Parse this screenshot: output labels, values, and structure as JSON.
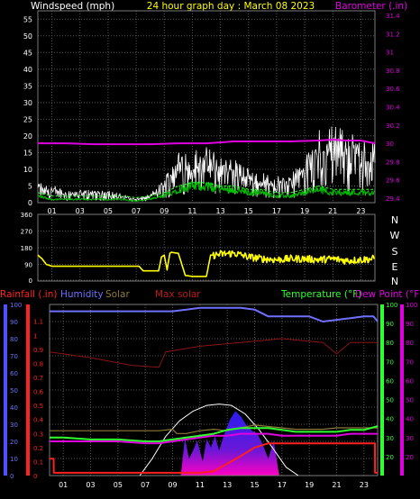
{
  "header": {
    "windspeed_label": "Windspeed (mph)",
    "title": "24 hour graph day : March 08 2023",
    "barometer_label": "Barometer (.in)"
  },
  "direction_letters": [
    "N",
    "W",
    "S",
    "E",
    "N"
  ],
  "bottom_header": {
    "rainfall": "Rainfall (.in)",
    "humidity": "Humidity",
    "solar": "Solar",
    "max_solar": "Max solar",
    "temperature": "Temperature (°F)",
    "dew_point": "Dew Point (°F)"
  },
  "colors": {
    "wind_gust": "#ffffff",
    "wind_avg": "#00c000",
    "barometer": "#e000e0",
    "direction": "#ffff00",
    "temperature": "#30ff30",
    "dew_point": "#e000e0",
    "humidity": "#7070ff",
    "rain": "#ff2020",
    "solar": "#8c7a3a",
    "max_solar": "#ffffff",
    "solar_fill": "#3a1bd8"
  },
  "chart_data": [
    {
      "type": "line",
      "title": "24 hour graph day : March 08 2023",
      "x": {
        "ticks": [
          "01",
          "03",
          "05",
          "07",
          "09",
          "11",
          "13",
          "15",
          "17",
          "19",
          "21",
          "23"
        ],
        "range": [
          "00:00",
          "24:00"
        ]
      },
      "yleft": {
        "label": "Windspeed (mph)",
        "range": [
          0,
          57.5
        ],
        "ticks": [
          0,
          5,
          10,
          15,
          20,
          25,
          30,
          35,
          40,
          45,
          50,
          55
        ]
      },
      "yright": {
        "label": "Barometer (.in)",
        "range": [
          29.35,
          31.45
        ],
        "ticks": [
          "29.4",
          "29.6",
          "29.8",
          "30",
          "30.2",
          "30.4",
          "30.6",
          "30.8",
          "31",
          "31.2",
          "31.4"
        ]
      },
      "series": [
        {
          "name": "Barometer",
          "axis": "right",
          "x": [
            0,
            2,
            4,
            6,
            8,
            10,
            12,
            14,
            16,
            18,
            20,
            21,
            22,
            23,
            24
          ],
          "values": [
            30.0,
            30.0,
            29.99,
            29.99,
            29.99,
            30.0,
            30.0,
            30.02,
            30.02,
            30.02,
            30.03,
            30.04,
            30.03,
            30.03,
            30.0
          ]
        },
        {
          "axis": "left",
          "x": [
            0,
            1,
            2,
            3,
            4,
            5,
            6,
            7,
            8,
            9,
            10,
            11,
            12,
            13,
            14,
            15,
            16,
            17,
            18,
            19,
            20,
            21,
            22,
            23,
            24
          ],
          "values": [
            2,
            1,
            1,
            1,
            1,
            1,
            1,
            0.5,
            1,
            2,
            4,
            5,
            5,
            4,
            4,
            3,
            3,
            2,
            2,
            3,
            4,
            3,
            3,
            3,
            3
          ]
        },
        {
          "axis": "left",
          "x": [
            0,
            1,
            2,
            3,
            4,
            5,
            6,
            7,
            8,
            9,
            10,
            11,
            12,
            13,
            14,
            15,
            16,
            17,
            18,
            19,
            20,
            21,
            22,
            23,
            24
          ],
          "values": [
            5,
            4,
            3,
            3,
            3,
            3,
            2,
            1,
            2,
            6,
            12,
            12,
            13,
            11,
            10,
            8,
            7,
            6,
            7,
            10,
            17,
            18,
            17,
            15,
            14
          ]
        }
      ]
    },
    {
      "type": "line",
      "x": {
        "ticks": [
          "01",
          "03",
          "05",
          "07",
          "09",
          "11",
          "13",
          "15",
          "17",
          "19",
          "21",
          "23"
        ],
        "range": [
          "00:00",
          "24:00"
        ]
      },
      "y": {
        "range": [
          0,
          360
        ],
        "ticks": [
          0,
          90,
          180,
          270,
          360
        ]
      },
      "series": [
        {
          "name": "Wind direction",
          "x": [
            0,
            0.3,
            0.6,
            1,
            2,
            4,
            5,
            6,
            6.8,
            7.2,
            7.5,
            7.8,
            8.2,
            8.6,
            8.8,
            9,
            9.2,
            9.4,
            9.5,
            10,
            10.5,
            11,
            12,
            12.3,
            12.6,
            13,
            14,
            15,
            16,
            17,
            18,
            19,
            20,
            21,
            22,
            23,
            24
          ],
          "values": [
            140,
            120,
            90,
            80,
            80,
            80,
            80,
            80,
            80,
            80,
            55,
            55,
            55,
            55,
            130,
            140,
            60,
            150,
            155,
            150,
            30,
            25,
            25,
            140,
            140,
            145,
            150,
            130,
            120,
            115,
            120,
            120,
            115,
            120,
            110,
            115,
            120
          ]
        }
      ]
    },
    {
      "type": "line",
      "x": {
        "ticks": [
          "01",
          "03",
          "05",
          "07",
          "09",
          "11",
          "13",
          "15",
          "17",
          "19",
          "21",
          "23"
        ],
        "range": [
          "00:00",
          "24:00"
        ]
      },
      "yleft_rain": {
        "label": "Rainfall (.in)",
        "range": [
          0,
          1.22
        ],
        "ticks": [
          "0",
          "0.1",
          "0.2",
          "0.3",
          "0.4",
          "0.5",
          "0.6",
          "0.7",
          "0.8",
          "0.9",
          "1",
          "1.1"
        ]
      },
      "yleft_humidity": {
        "label": "Humidity",
        "range": [
          0,
          100
        ],
        "ticks": [
          0,
          10,
          20,
          30,
          40,
          50,
          60,
          70,
          80,
          90,
          100
        ]
      },
      "yright_temp": {
        "label": "Temperature (°F)",
        "range": [
          10,
          100
        ],
        "ticks": [
          20,
          30,
          40,
          50,
          60,
          70,
          80,
          90,
          100
        ]
      },
      "yright_dew": {
        "label": "Dew Point (°F)",
        "range": [
          10,
          100
        ],
        "ticks": [
          20,
          30,
          40,
          50,
          60,
          70,
          80,
          90,
          100
        ]
      },
      "series": [
        {
          "name": "Humidity",
          "axis": "humidity",
          "x": [
            0,
            3,
            6,
            8,
            9,
            10,
            11,
            12,
            13,
            14,
            15,
            16,
            17,
            18,
            19,
            20,
            21,
            22,
            23,
            23.7,
            24
          ],
          "values": [
            96,
            96,
            96,
            96,
            96,
            97,
            98,
            98,
            98,
            98,
            97,
            93,
            93,
            93,
            93,
            90,
            91,
            92,
            93,
            93,
            90
          ]
        },
        {
          "name": "Temperature (°F)",
          "axis": "temp",
          "x": [
            0,
            1,
            3,
            5,
            7,
            8,
            9,
            10,
            11,
            12,
            13,
            14,
            15,
            16,
            17,
            18,
            19,
            20,
            21,
            22,
            23,
            24
          ],
          "values": [
            30,
            30,
            29,
            29,
            28,
            28,
            29,
            30,
            31,
            32,
            34,
            35,
            35,
            35,
            34,
            33,
            33,
            33,
            33,
            34,
            34,
            36
          ]
        },
        {
          "name": "Dew Point (°F)",
          "axis": "dew",
          "x": [
            0,
            1,
            3,
            5,
            7,
            8,
            9,
            10,
            11,
            12,
            13,
            14,
            15,
            16,
            17,
            18,
            19,
            20,
            21,
            22,
            23,
            24
          ],
          "values": [
            28,
            28,
            28,
            28,
            27,
            27,
            28,
            29,
            30,
            31,
            31,
            32,
            32,
            32,
            31,
            31,
            31,
            31,
            31,
            32,
            32,
            32
          ]
        },
        {
          "name": "Rainfall (.in)",
          "axis": "rain",
          "x": [
            0,
            0.3,
            0.31,
            0.6,
            0.61,
            9,
            11,
            12,
            14,
            15,
            16,
            16.5,
            23.8,
            23.81,
            24
          ],
          "values": [
            0.12,
            0.12,
            0.02,
            0.02,
            0.02,
            0.02,
            0.02,
            0.03,
            0.14,
            0.2,
            0.23,
            0.23,
            0.23,
            0.02,
            0.02
          ]
        },
        {
          "name": "Solar",
          "axis": "rain",
          "x": [
            0,
            6,
            7,
            8,
            9,
            9.3,
            10,
            11,
            12,
            13,
            14,
            15,
            16,
            17,
            18,
            19,
            20,
            21,
            22,
            23,
            24
          ],
          "values": [
            0.32,
            0.32,
            0.32,
            0.32,
            0.33,
            0.3,
            0.3,
            0.32,
            0.33,
            0.32,
            0.34,
            0.36,
            0.35,
            0.34,
            0.33,
            0.33,
            0.33,
            0.34,
            0.34,
            0.34,
            0.34
          ]
        },
        {
          "name": "Max solar",
          "axis": "rain",
          "x": [
            6.6,
            7.5,
            8.5,
            9.5,
            10.5,
            11.5,
            12.4,
            13.3,
            14.3,
            15.3,
            16.3,
            17.3,
            18.2
          ],
          "values": [
            0,
            0.12,
            0.28,
            0.39,
            0.46,
            0.5,
            0.51,
            0.5,
            0.44,
            0.33,
            0.2,
            0.06,
            0
          ]
        },
        {
          "name": "Solar fill",
          "axis": "rain",
          "x": [
            9.6,
            9.9,
            10.2,
            10.5,
            10.8,
            11.2,
            11.5,
            11.8,
            12.1,
            12.4,
            12.8,
            13.2,
            13.6,
            14.0,
            14.4,
            14.8,
            15.2,
            15.6,
            16.0,
            16.4,
            16.8
          ],
          "values": [
            0,
            0.27,
            0.12,
            0.18,
            0.25,
            0.1,
            0.26,
            0.2,
            0.28,
            0.18,
            0.3,
            0.4,
            0.46,
            0.42,
            0.36,
            0.32,
            0.3,
            0.22,
            0.12,
            0.25,
            0
          ]
        }
      ]
    }
  ]
}
